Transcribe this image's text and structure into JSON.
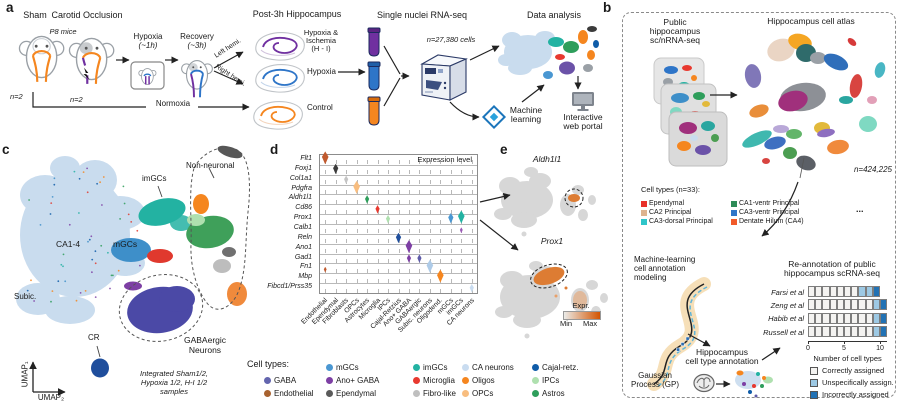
{
  "a": {
    "label": "a",
    "sham": "Sham",
    "occlusion": "Carotid Occlusion",
    "p8": "P8 mice",
    "n2a": "n=2",
    "n2b": "n=2",
    "hypoxia": "Hypoxia",
    "hypoxia_t": "(~1h)",
    "recovery": "Recovery",
    "recovery_t": "(~3h)",
    "left_hemi": "Left hemi.",
    "right_hemi": "Right hemi.",
    "post_title": "Post-3h Hippocampus",
    "hi1": "Hypoxia &",
    "hi2": "Ischemia",
    "hi3": "(H - I)",
    "hypoxia_s": "Hypoxia",
    "control_s": "Control",
    "normoxia": "Normoxia",
    "seq_title": "Single nuclei RNA-seq",
    "n_cells": "n=27,380 cells",
    "analysis": "Data analysis",
    "ml1": "Machine",
    "ml2": "learning",
    "portal1": "Interactive",
    "portal2": "web portal"
  },
  "b": {
    "label": "b",
    "pub1": "Public",
    "pub2": "hippocampus",
    "pub3": "sc/nRNA-seq",
    "atlas_title": "Hippocampus cell atlas",
    "n_cells": "n=424,225",
    "ct_heading": "Cell types (n=33):",
    "legend": [
      [
        {
          "label": "Ependymal",
          "color": "#e8312a"
        },
        {
          "label": "CA2 Principal",
          "color": "#ddb38f"
        },
        {
          "label": "CA3-dorsal Principal",
          "color": "#2fc5c9"
        }
      ],
      [
        {
          "label": "CA1-ventr Principal",
          "color": "#2e8b57"
        },
        {
          "label": "CA3-ventr Principal",
          "color": "#2e75c8"
        },
        {
          "label": "Dentate Hilum (CA4)",
          "color": "#f15a29"
        }
      ]
    ],
    "more": "...",
    "ml1": "Machine-learning",
    "ml2": "cell annotation",
    "ml3": "modeling",
    "gp1": "Gaussian",
    "gp2": "Process (GP)",
    "an1": "Hippocampus",
    "an2": "cell type annotation",
    "re1": "Re-annotation of public",
    "re2": "hippocampus scRNA-seq"
  },
  "c": {
    "label": "c",
    "non_neuronal": "Non-neuronal",
    "imgcs": "imGCs",
    "mgcs": "mGCs",
    "ca14": "CA1-4",
    "subic": "Subic.",
    "gaba1": "GABAergic",
    "gaba2": "Neurons",
    "cr": "CR",
    "cap1": "Integrated Sham1/2,",
    "cap2": "Hypoxia 1/2, H-I 1/2",
    "cap3": "samples",
    "umap1": "UMAP₁",
    "umap2": "UMAP₂"
  },
  "d": {
    "label": "d",
    "title": "Expression level"
  },
  "e": {
    "label": "e",
    "gene_top": "Aldh1l1",
    "gene_bottom": "Prox1",
    "expr": "Expr.",
    "min": "Min",
    "max": "Max"
  },
  "cell_legend": {
    "heading": "Cell types:",
    "columns": [
      [
        null,
        {
          "label": "GABA",
          "color": "#6365ae"
        },
        {
          "label": "Endothelial",
          "color": "#a8622f"
        }
      ],
      [
        {
          "label": "mGCs",
          "color": "#4a97d2"
        },
        {
          "label": "Ano+ GABA",
          "color": "#7d3fa4"
        },
        {
          "label": "Ependymal",
          "color": "#5a5a5a"
        }
      ],
      [
        {
          "label": "imGCs",
          "color": "#23b2a2"
        },
        {
          "label": "Microglia",
          "color": "#e8392f"
        },
        {
          "label": "Fibro-like",
          "color": "#bfbfbf"
        }
      ],
      [
        {
          "label": "CA neurons",
          "color": "#c9dcf0"
        },
        {
          "label": "Oligos",
          "color": "#f5861f"
        },
        {
          "label": "OPCs",
          "color": "#f8bd7f"
        }
      ],
      [
        {
          "label": "Cajal-retz.",
          "color": "#0f5ca8"
        },
        {
          "label": "IPCs",
          "color": "#afe0af"
        },
        {
          "label": "Astros",
          "color": "#2e9e5b"
        }
      ]
    ]
  },
  "chart_data": [
    {
      "type": "bar",
      "orientation": "horizontal-stacked",
      "title": "Re-annotation of public hippocampus scRNA-seq",
      "categories": [
        "Farsi et al",
        "Zeng et al",
        "Habib et al",
        "Russell et al"
      ],
      "series": [
        {
          "name": "Correctly assigned",
          "color": "#f4f3f1",
          "values": [
            7,
            9,
            9,
            9
          ]
        },
        {
          "name": "Unspecifically assign.",
          "color": "#9dc9e4",
          "values": [
            2,
            1,
            1,
            1
          ]
        },
        {
          "name": "Incorrectly assigned",
          "color": "#2272b4",
          "values": [
            1,
            1,
            1,
            1
          ]
        }
      ],
      "xlabel": "Number of cell types",
      "xlim": [
        0,
        11
      ],
      "xticks": [
        0,
        5,
        10
      ],
      "legend_position": "bottom"
    },
    {
      "type": "violin-matrix",
      "title": "Expression level",
      "rows_are": "genes",
      "rows": [
        "Flt1",
        "Foxj1",
        "Col1a1",
        "Pdgfra",
        "Aldh1l1",
        "Cd86",
        "Prox1",
        "Calb1",
        "Reln",
        "Ano1",
        "Gad1",
        "Fn1",
        "Mbp",
        "Fibcd1/Prss35"
      ],
      "columns": [
        "Endothelial",
        "Ependymal",
        "Fibroblasts",
        "OPCs",
        "Astrocytes",
        "Microglia",
        "IPCs",
        "Cajal-Retzius",
        "Ano+ GABA",
        "GABAergic",
        "Subic. neurons",
        "Oligodend.",
        "mGCs",
        "imGCs",
        "CA neurons"
      ],
      "markers": [
        {
          "gene": "Flt1",
          "cell": "Endothelial",
          "size": "lg",
          "color": "#c05a2e"
        },
        {
          "gene": "Foxj1",
          "cell": "Ependymal",
          "size": "md",
          "color": "#3b3b3b"
        },
        {
          "gene": "Col1a1",
          "cell": "Fibroblasts",
          "size": "sm",
          "color": "#c4c4c4"
        },
        {
          "gene": "Pdgfra",
          "cell": "OPCs",
          "size": "lg",
          "color": "#f8bd7f"
        },
        {
          "gene": "Aldh1l1",
          "cell": "Astrocytes",
          "size": "sm",
          "color": "#2e9e5b"
        },
        {
          "gene": "Cd86",
          "cell": "Microglia",
          "size": "sm",
          "color": "#e8392f"
        },
        {
          "gene": "Prox1",
          "cell": "IPCs",
          "size": "sm",
          "color": "#afe0af"
        },
        {
          "gene": "Prox1",
          "cell": "mGCs",
          "size": "md",
          "color": "#4a97d2"
        },
        {
          "gene": "Prox1",
          "cell": "imGCs",
          "size": "lg",
          "color": "#23b2a2"
        },
        {
          "gene": "Calb1",
          "cell": "imGCs",
          "size": "xs",
          "color": "#9b59b6"
        },
        {
          "gene": "Reln",
          "cell": "Cajal-Retzius",
          "size": "md",
          "color": "#1f4e9c"
        },
        {
          "gene": "Ano1",
          "cell": "Ano+ GABA",
          "size": "lg",
          "color": "#7d3fa4"
        },
        {
          "gene": "Gad1",
          "cell": "Ano+ GABA",
          "size": "sm",
          "color": "#7d3fa4"
        },
        {
          "gene": "Gad1",
          "cell": "GABAergic",
          "size": "sm",
          "color": "#5e5ba8"
        },
        {
          "gene": "Fn1",
          "cell": "Endothelial",
          "size": "xs",
          "color": "#c05a2e"
        },
        {
          "gene": "Fn1",
          "cell": "Subic. neurons",
          "size": "lg",
          "color": "#aecbe8"
        },
        {
          "gene": "Mbp",
          "cell": "Oligodend.",
          "size": "lg",
          "color": "#f5861f"
        },
        {
          "gene": "Fibcd1/Prss35",
          "cell": "CA neurons",
          "size": "sm",
          "color": "#c9dcf0"
        }
      ]
    }
  ]
}
